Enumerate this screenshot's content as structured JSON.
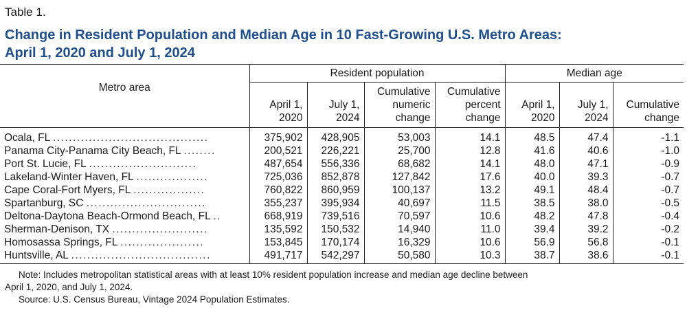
{
  "header": {
    "label": "Table 1.",
    "title_line1": "Change in Resident Population and Median Age in 10 Fast-Growing U.S. Metro Areas:",
    "title_line2": "April 1, 2020 and July 1, 2024"
  },
  "columns": {
    "metro": "Metro area",
    "group_pop": "Resident population",
    "group_age": "Median age",
    "pop_apr_1": "April 1,",
    "pop_apr_2": "2020",
    "pop_jul_1": "July 1,",
    "pop_jul_2": "2024",
    "pop_num_1": "Cumulative",
    "pop_num_2": "numeric",
    "pop_num_3": "change",
    "pop_pct_1": "Cumulative",
    "pop_pct_2": "percent",
    "pop_pct_3": "change",
    "age_apr_1": "April 1,",
    "age_apr_2": "2020",
    "age_jul_1": "July 1,",
    "age_jul_2": "2024",
    "age_chg_1": "Cumulative",
    "age_chg_2": "change"
  },
  "rows": [
    {
      "name": "Ocala, FL",
      "dots": ".......................................",
      "pop2020": "375,902",
      "pop2024": "428,905",
      "num": "53,003",
      "pct": "14.1",
      "age2020": "48.5",
      "age2024": "47.4",
      "agechg": "-1.1"
    },
    {
      "name": "Panama City-Panama City Beach, FL",
      "dots": "........",
      "pop2020": "200,521",
      "pop2024": "226,221",
      "num": "25,700",
      "pct": "12.8",
      "age2020": "41.6",
      "age2024": "40.6",
      "agechg": "-1.0"
    },
    {
      "name": "Port St. Lucie, FL",
      "dots": "...........................",
      "pop2020": "487,654",
      "pop2024": "556,336",
      "num": "68,682",
      "pct": "14.1",
      "age2020": "48.0",
      "age2024": "47.1",
      "agechg": "-0.9"
    },
    {
      "name": "Lakeland-Winter Haven, FL",
      "dots": "..................",
      "pop2020": "725,036",
      "pop2024": "852,878",
      "num": "127,842",
      "pct": "17.6",
      "age2020": "40.0",
      "age2024": "39.3",
      "agechg": "-0.7"
    },
    {
      "name": "Cape Coral-Fort Myers, FL",
      "dots": "..................",
      "pop2020": "760,822",
      "pop2024": "860,959",
      "num": "100,137",
      "pct": "13.2",
      "age2020": "49.1",
      "age2024": "48.4",
      "agechg": "-0.7"
    },
    {
      "name": "Spartanburg, SC",
      "dots": "..............................",
      "pop2020": "355,237",
      "pop2024": "395,934",
      "num": "40,697",
      "pct": "11.5",
      "age2020": "38.5",
      "age2024": "38.0",
      "agechg": "-0.5"
    },
    {
      "name": "Deltona-Daytona Beach-Ormond Beach, FL",
      "dots": "..",
      "pop2020": "668,919",
      "pop2024": "739,516",
      "num": "70,597",
      "pct": "10.6",
      "age2020": "48.2",
      "age2024": "47.8",
      "agechg": "-0.4"
    },
    {
      "name": "Sherman-Denison, TX",
      "dots": "........................",
      "pop2020": "135,592",
      "pop2024": "150,532",
      "num": "14,940",
      "pct": "11.0",
      "age2020": "39.4",
      "age2024": "39.2",
      "agechg": "-0.2"
    },
    {
      "name": "Homosassa Springs, FL",
      "dots": ".....................",
      "pop2020": "153,845",
      "pop2024": "170,174",
      "num": "16,329",
      "pct": "10.6",
      "age2020": "56.9",
      "age2024": "56.8",
      "agechg": "-0.1"
    },
    {
      "name": "Huntsville, AL",
      "dots": "...................................",
      "pop2020": "491,717",
      "pop2024": "542,297",
      "num": "50,580",
      "pct": "10.3",
      "age2020": "38.7",
      "age2024": "38.6",
      "agechg": "-0.1"
    }
  ],
  "footer": {
    "note_line1": "Note: Includes metropolitan statistical areas with at least 10% resident population increase and median age decline between",
    "note_line2": "April 1, 2020, and July 1, 2024.",
    "source": "Source: U.S. Census Bureau, Vintage 2024 Population Estimates."
  }
}
